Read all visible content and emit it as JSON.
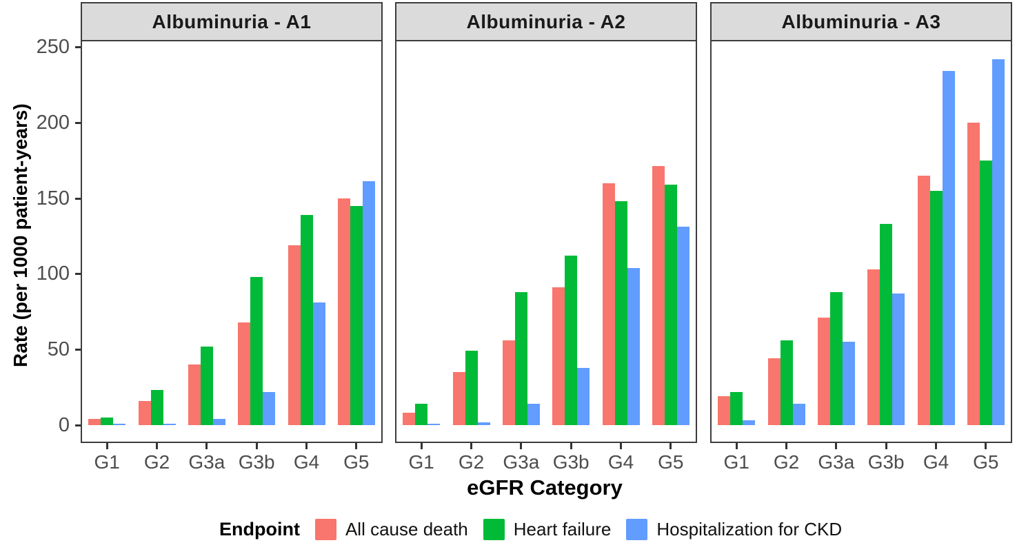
{
  "chart_data": {
    "type": "bar",
    "title": "",
    "xlabel": "eGFR Category",
    "ylabel": "Rate (per 1000 patient-years)",
    "categories": [
      "G1",
      "G2",
      "G3a",
      "G3b",
      "G4",
      "G5"
    ],
    "yticks": [
      0,
      50,
      100,
      150,
      200,
      250
    ],
    "ylim": [
      0,
      250
    ],
    "grid": false,
    "legend_position": "bottom",
    "legend_title": "Endpoint",
    "series_names": [
      "All cause death",
      "Heart failure",
      "Hospitalization for CKD"
    ],
    "series_colors": [
      "#F8766D",
      "#00BA38",
      "#619CFF"
    ],
    "facets": [
      {
        "title": "Albuminuria - A1",
        "series": [
          {
            "name": "All cause death",
            "values": [
              4,
              16,
              40,
              68,
              119,
              150
            ]
          },
          {
            "name": "Heart failure",
            "values": [
              5,
              23,
              52,
              98,
              139,
              145
            ]
          },
          {
            "name": "Hospitalization for CKD",
            "values": [
              1,
              1,
              4,
              22,
              81,
              161
            ]
          }
        ]
      },
      {
        "title": "Albuminuria - A2",
        "series": [
          {
            "name": "All cause death",
            "values": [
              8,
              35,
              56,
              91,
              160,
              171
            ]
          },
          {
            "name": "Heart failure",
            "values": [
              14,
              49,
              88,
              112,
              148,
              159
            ]
          },
          {
            "name": "Hospitalization for CKD",
            "values": [
              1,
              2,
              14,
              38,
              104,
              131
            ]
          }
        ]
      },
      {
        "title": "Albuminuria - A3",
        "series": [
          {
            "name": "All cause death",
            "values": [
              19,
              44,
              71,
              103,
              165,
              200
            ]
          },
          {
            "name": "Heart failure",
            "values": [
              22,
              56,
              88,
              133,
              155,
              175
            ]
          },
          {
            "name": "Hospitalization for CKD",
            "values": [
              3,
              14,
              55,
              87,
              234,
              242
            ]
          }
        ]
      }
    ],
    "colors": {
      "panel_header_bg": "#dbdbdb",
      "panel_border": "#3c3c3c",
      "tick_label": "#4d4d4d",
      "all_cause_death": "#F8766D",
      "heart_failure": "#00BA38",
      "hospitalization_ckd": "#619CFF"
    }
  }
}
